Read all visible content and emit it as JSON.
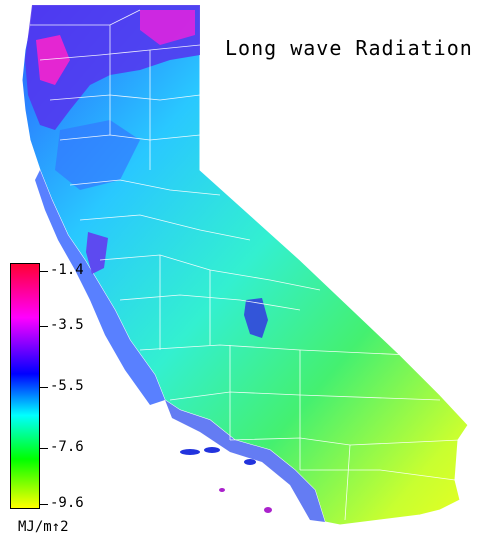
{
  "title": "Long wave Radiation",
  "legend": {
    "unit": "MJ/m↑2",
    "ticks": [
      "-1.4",
      "-3.5",
      "-5.5",
      "-7.6",
      "-9.6"
    ],
    "min": -9.6,
    "max": -1.4,
    "colors": [
      "#ff0033",
      "#ff00ff",
      "#0000ff",
      "#00ffff",
      "#00ff00",
      "#ffff00"
    ]
  },
  "colors": {
    "background": "#ffffff",
    "county_lines": "#ffffff",
    "coast_low": "#2040ff",
    "inland": "#33ffcc",
    "desert": "#ccff33"
  }
}
